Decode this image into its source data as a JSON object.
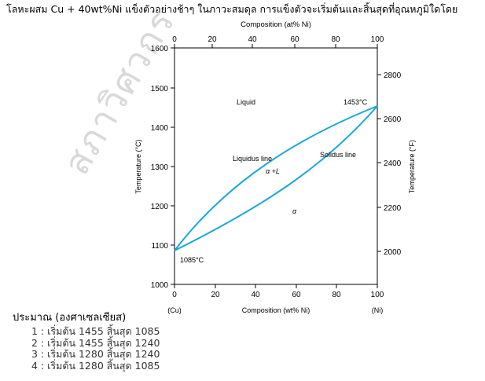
{
  "question": "โลหะผสม Cu + 40wt%Ni แข็งตัวอย่างช้าๆ ในภาวะสมดุล การแข็งตัวจะเริ่มต้นและสิ้นสุดที่อุณหภูมิใดโดย",
  "watermark": "สภาวิศวกร",
  "unit_note": "ประมาณ (องศาเซลเซียส)",
  "choices": [
    {
      "label": "1 : เริ่มต้น 1455 สิ้นสุด 1085"
    },
    {
      "label": "2 : เริ่มต้น 1455 สิ้นสุด 1240"
    },
    {
      "label": "3 : เริ่มต้น 1280 สิ้นสุด 1240"
    },
    {
      "label": "4 : เริ่มต้น 1280 สิ้นสุด 1085"
    }
  ],
  "diagram": {
    "top_axis_title": "Composition (at% Ni)",
    "top_ticks": [
      "0",
      "20",
      "40",
      "60",
      "80",
      "100"
    ],
    "bottom_axis_title": "Composition (wt% Ni)",
    "bottom_ticks": [
      "0",
      "20",
      "40",
      "60",
      "80",
      "100"
    ],
    "bottom_end_left": "(Cu)",
    "bottom_end_right": "(Ni)",
    "left_axis_title": "Temperature (°C)",
    "left_ticks": [
      "1000",
      "1100",
      "1200",
      "1300",
      "1400",
      "1500",
      "1600"
    ],
    "right_axis_title": "Temperature (°F)",
    "right_ticks": [
      "2000",
      "2200",
      "2400",
      "2600",
      "2800"
    ],
    "labels": {
      "liquid": "Liquid",
      "liquidus": "Liquidus line",
      "solidus": "Solidus line",
      "two_phase": "α +L",
      "alpha": "α",
      "cu_melt": "1085°C",
      "ni_melt": "1453°C"
    },
    "curve_color": "#1aa7d6",
    "melting_point_cu_c": 1085,
    "melting_point_ni_c": 1453
  }
}
